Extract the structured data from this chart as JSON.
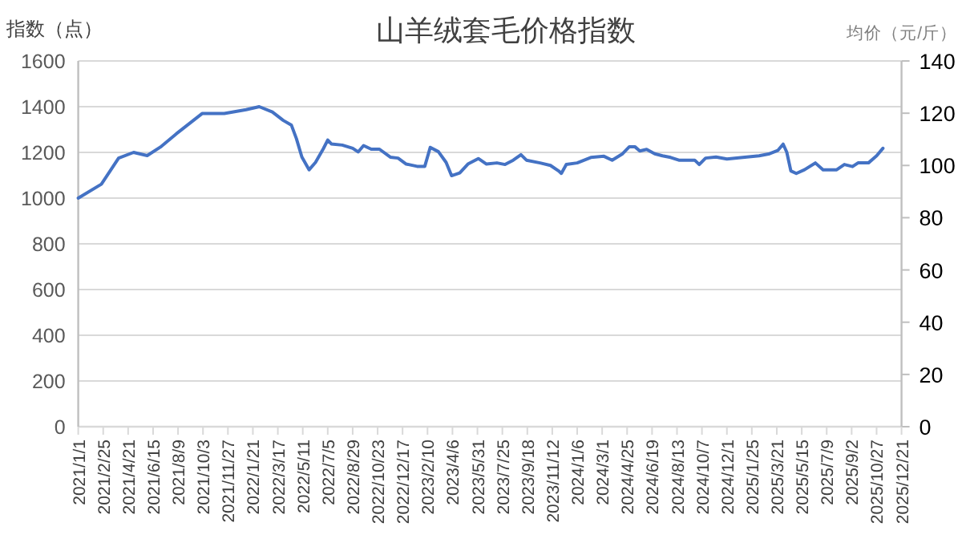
{
  "chart_data": {
    "type": "line",
    "title": "山羊绒套毛价格指数",
    "ylabel": "指数（点）",
    "y2label": "均价（元/斤）",
    "x": [
      "2021-01-01",
      "2021-02-21",
      "2021-03-31",
      "2021-05-03",
      "2021-06-02",
      "2021-07-01",
      "2021-08-05",
      "2021-10-01",
      "2021-11-19",
      "2022-01-06",
      "2022-02-04",
      "2022-03-05",
      "2022-03-29",
      "2022-04-16",
      "2022-04-27",
      "2022-05-09",
      "2022-05-25",
      "2022-06-08",
      "2022-06-25",
      "2022-07-05",
      "2022-07-13",
      "2022-08-06",
      "2022-08-29",
      "2022-09-10",
      "2022-09-22",
      "2022-10-09",
      "2022-10-27",
      "2022-11-20",
      "2022-12-07",
      "2022-12-25",
      "2023-01-18",
      "2023-02-04",
      "2023-02-16",
      "2023-03-06",
      "2023-03-23",
      "2023-04-04",
      "2023-04-22",
      "2023-05-10",
      "2023-06-02",
      "2023-06-20",
      "2023-07-13",
      "2023-07-31",
      "2023-08-18",
      "2023-09-04",
      "2023-09-16",
      "2023-10-16",
      "2023-11-08",
      "2023-11-26",
      "2023-12-02",
      "2023-12-13",
      "2024-01-06",
      "2024-02-05",
      "2024-03-05",
      "2024-03-23",
      "2024-04-15",
      "2024-04-30",
      "2024-05-12",
      "2024-05-23",
      "2024-06-07",
      "2024-06-25",
      "2024-07-12",
      "2024-07-30",
      "2024-08-17",
      "2024-09-21",
      "2024-10-01",
      "2024-10-15",
      "2024-11-07",
      "2024-12-01",
      "2025-01-05",
      "2025-02-10",
      "2025-03-05",
      "2025-03-23",
      "2025-04-04",
      "2025-04-12",
      "2025-04-21",
      "2025-05-03",
      "2025-05-21",
      "2025-06-14",
      "2025-07-01",
      "2025-07-31",
      "2025-08-17",
      "2025-09-04",
      "2025-09-16",
      "2025-10-09",
      "2025-10-27",
      "2025-11-10"
    ],
    "series": [
      {
        "color": "#4472c4",
        "values": [
          1000,
          1061,
          1175,
          1200,
          1186,
          1223,
          1281,
          1370,
          1370,
          1387,
          1400,
          1377,
          1340,
          1319,
          1260,
          1180,
          1124,
          1156,
          1215,
          1254,
          1237,
          1232,
          1218,
          1202,
          1230,
          1214,
          1214,
          1179,
          1175,
          1149,
          1139,
          1139,
          1222,
          1203,
          1156,
          1098,
          1110,
          1149,
          1173,
          1149,
          1154,
          1147,
          1166,
          1190,
          1166,
          1154,
          1143,
          1119,
          1108,
          1147,
          1154,
          1178,
          1183,
          1166,
          1194,
          1225,
          1225,
          1206,
          1213,
          1194,
          1185,
          1178,
          1166,
          1166,
          1147,
          1175,
          1180,
          1171,
          1178,
          1185,
          1194,
          1208,
          1236,
          1201,
          1119,
          1108,
          1124,
          1154,
          1124,
          1124,
          1147,
          1138,
          1154,
          1154,
          1185,
          1218
        ]
      }
    ],
    "xlim": [
      "2021-01-01",
      "2025-12-21"
    ],
    "xticks": [
      {
        "value": "2021-01-01",
        "label": "2021/1/1"
      },
      {
        "value": "2021-02-25",
        "label": "2021/2/25"
      },
      {
        "value": "2021-04-21",
        "label": "2021/4/21"
      },
      {
        "value": "2021-06-15",
        "label": "2021/6/15"
      },
      {
        "value": "2021-08-09",
        "label": "2021/8/9"
      },
      {
        "value": "2021-10-03",
        "label": "2021/10/3"
      },
      {
        "value": "2021-11-27",
        "label": "2021/11/27"
      },
      {
        "value": "2022-01-21",
        "label": "2022/1/21"
      },
      {
        "value": "2022-03-17",
        "label": "2022/3/17"
      },
      {
        "value": "2022-05-11",
        "label": "2022/5/11"
      },
      {
        "value": "2022-07-05",
        "label": "2022/7/5"
      },
      {
        "value": "2022-08-29",
        "label": "2022/8/29"
      },
      {
        "value": "2022-10-23",
        "label": "2022/10/23"
      },
      {
        "value": "2022-12-17",
        "label": "2022/12/17"
      },
      {
        "value": "2023-02-10",
        "label": "2023/2/10"
      },
      {
        "value": "2023-04-06",
        "label": "2023/4/6"
      },
      {
        "value": "2023-05-31",
        "label": "2023/5/31"
      },
      {
        "value": "2023-07-25",
        "label": "2023/7/25"
      },
      {
        "value": "2023-09-18",
        "label": "2023/9/18"
      },
      {
        "value": "2023-11-12",
        "label": "2023/11/12"
      },
      {
        "value": "2024-01-06",
        "label": "2024/1/6"
      },
      {
        "value": "2024-03-01",
        "label": "2024/3/1"
      },
      {
        "value": "2024-04-25",
        "label": "2024/4/25"
      },
      {
        "value": "2024-06-19",
        "label": "2024/6/19"
      },
      {
        "value": "2024-08-13",
        "label": "2024/8/13"
      },
      {
        "value": "2024-10-07",
        "label": "2024/10/7"
      },
      {
        "value": "2024-12-01",
        "label": "2024/12/1"
      },
      {
        "value": "2025-01-25",
        "label": "2025/1/25"
      },
      {
        "value": "2025-03-21",
        "label": "2025/3/21"
      },
      {
        "value": "2025-05-15",
        "label": "2025/5/15"
      },
      {
        "value": "2025-07-09",
        "label": "2025/7/9"
      },
      {
        "value": "2025-09-02",
        "label": "2025/9/2"
      },
      {
        "value": "2025-10-27",
        "label": "2025/10/27"
      },
      {
        "value": "2025-12-21",
        "label": "2025/12/21"
      }
    ],
    "ylim": [
      0,
      1600
    ],
    "yticks": [
      0,
      200,
      400,
      600,
      800,
      1000,
      1200,
      1400,
      1600
    ],
    "y2lim": [
      0,
      140
    ],
    "y2ticks": [
      0,
      20,
      40,
      60,
      80,
      100,
      120,
      140
    ],
    "grid": "y",
    "marker": "none",
    "line_style": "solid"
  }
}
